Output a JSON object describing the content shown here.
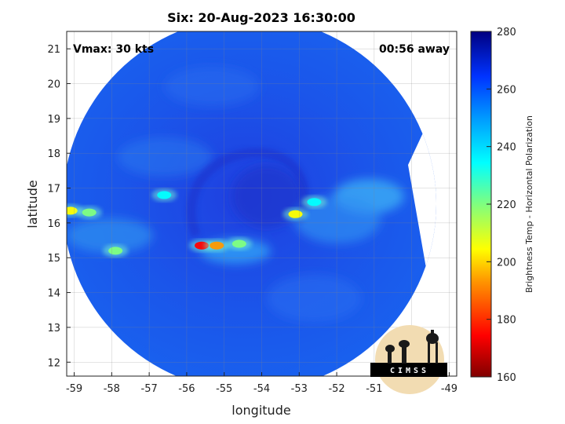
{
  "chart_data": {
    "type": "heatmap",
    "title": "Six: 20-Aug-2023 16:30:00",
    "xlabel": "longitude",
    "ylabel": "latitude",
    "xlim": [
      -59.2,
      -48.8
    ],
    "ylim": [
      11.6,
      21.5
    ],
    "x_ticks": [
      -59,
      -58,
      -57,
      -56,
      -55,
      -54,
      -53,
      -52,
      -51,
      -50,
      -49
    ],
    "y_ticks": [
      12,
      13,
      14,
      15,
      16,
      17,
      18,
      19,
      20,
      21
    ],
    "grid": true,
    "annotations": {
      "left": "Vmax: 30 kts",
      "right": "00:56 away"
    },
    "colorbar": {
      "label": "Brightness Temp - Horizontal Polarization",
      "range": [
        160,
        280
      ],
      "ticks": [
        160,
        180,
        200,
        220,
        240,
        260,
        280
      ]
    },
    "features": [
      {
        "lon": -55.6,
        "lat": 15.35,
        "value": 175
      },
      {
        "lon": -55.2,
        "lat": 15.35,
        "value": 195
      },
      {
        "lon": -54.6,
        "lat": 15.4,
        "value": 215
      },
      {
        "lon": -59.1,
        "lat": 16.35,
        "value": 205
      },
      {
        "lon": -58.6,
        "lat": 16.3,
        "value": 210
      },
      {
        "lon": -57.9,
        "lat": 15.2,
        "value": 215
      },
      {
        "lon": -53.1,
        "lat": 16.25,
        "value": 205
      },
      {
        "lon": -52.6,
        "lat": 16.6,
        "value": 225
      },
      {
        "lon": -56.6,
        "lat": 16.8,
        "value": 225
      }
    ]
  },
  "logo": {
    "text": "CIMSS"
  }
}
